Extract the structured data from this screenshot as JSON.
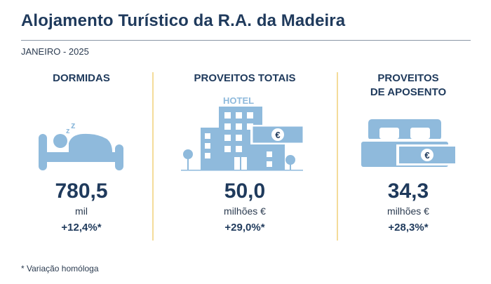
{
  "title": "Alojamento Turístico da R.A. da Madeira",
  "subtitle": "JANEIRO - 2025",
  "colors": {
    "icon": "#8fbadc",
    "divider": "#f4dc9a",
    "text": "#1f3a5c"
  },
  "panels": [
    {
      "title": "DORMIDAS",
      "value": "780,5",
      "unit": "mil",
      "change": "+12,4%*",
      "icon": "sleeping-person-icon"
    },
    {
      "title": "PROVEITOS TOTAIS",
      "value": "50,0",
      "unit": "milhões €",
      "change": "+29,0%*",
      "icon": "hotel-icon",
      "icon_text": "HOTEL",
      "euro": "€"
    },
    {
      "title": "PROVEITOS\nDE APOSENTO",
      "value": "34,3",
      "unit": "milhões €",
      "change": "+28,3%*",
      "icon": "bed-icon",
      "euro": "€"
    }
  ],
  "footnote": "* Variação homóloga"
}
